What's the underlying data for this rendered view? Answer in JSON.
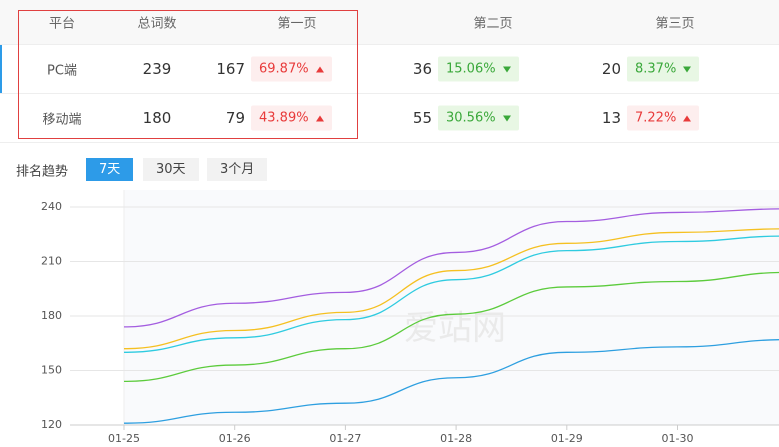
{
  "table": {
    "header": [
      "平台",
      "总词数",
      "第一页",
      "第二页",
      "第三页"
    ],
    "rows": [
      {
        "platform": "PC端",
        "total": 239,
        "pages": [
          {
            "count": 167,
            "percent": "69.87%",
            "trend": "up"
          },
          {
            "count": 36,
            "percent": "15.06%",
            "trend": "down"
          },
          {
            "count": 20,
            "percent": "8.37%",
            "trend": "down"
          }
        ]
      },
      {
        "platform": "移动端",
        "total": 180,
        "pages": [
          {
            "count": 79,
            "percent": "43.89%",
            "trend": "up"
          },
          {
            "count": 55,
            "percent": "30.56%",
            "trend": "down"
          },
          {
            "count": 13,
            "percent": "7.22%",
            "trend": "up"
          }
        ]
      }
    ]
  },
  "tabs": {
    "label": "排名趋势",
    "options": [
      "7天",
      "30天",
      "3个月"
    ],
    "active": 0
  },
  "watermark": "爱站网",
  "chart_data": {
    "type": "line",
    "categories": [
      "01-25",
      "01-26",
      "01-27",
      "01-28",
      "01-29",
      "01-30",
      null
    ],
    "series": [
      {
        "color": "#a45de0",
        "values": [
          174,
          187,
          193,
          215,
          232,
          237,
          239
        ]
      },
      {
        "color": "#f5c021",
        "values": [
          162,
          172,
          182,
          205,
          220,
          226,
          228
        ]
      },
      {
        "color": "#2fcbe0",
        "values": [
          160,
          168,
          178,
          200,
          216,
          221,
          224
        ]
      },
      {
        "color": "#5ccb3c",
        "values": [
          144,
          153,
          162,
          181,
          196,
          199,
          204
        ]
      },
      {
        "color": "#2e9fe0",
        "values": [
          121,
          127,
          132,
          146,
          160,
          163,
          167
        ]
      }
    ],
    "ylim": [
      120,
      240
    ],
    "yticks": [
      120,
      150,
      180,
      210,
      240
    ],
    "grid": true
  }
}
